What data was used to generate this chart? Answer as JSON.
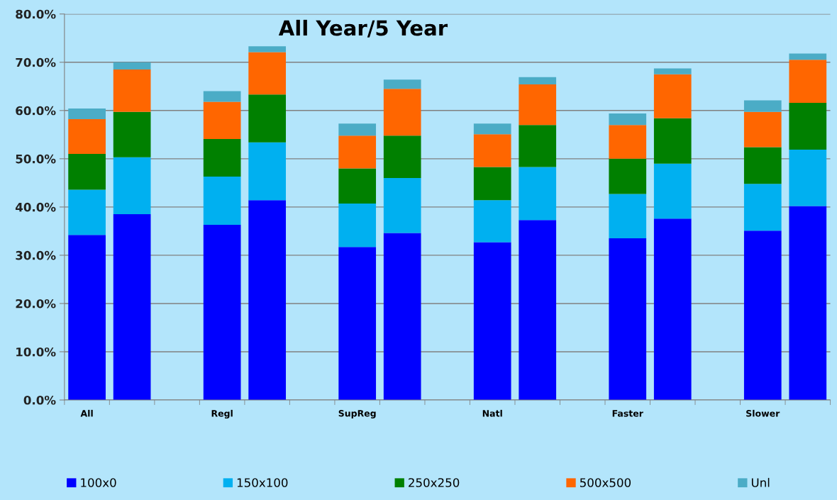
{
  "chart_data": {
    "type": "bar",
    "title": "All Year/5 Year",
    "stacked": true,
    "categories": [
      "All",
      null,
      null,
      "Regl",
      null,
      null,
      "SupReg",
      null,
      null,
      "Natl",
      null,
      null,
      "Faster",
      null,
      null,
      "Slower",
      null
    ],
    "series": [
      {
        "name": "100x0",
        "color": "#0000ff",
        "values": [
          34.2,
          38.5,
          null,
          36.3,
          41.4,
          null,
          31.7,
          34.6,
          null,
          32.7,
          37.3,
          null,
          33.5,
          37.6,
          null,
          35.1,
          40.2
        ]
      },
      {
        "name": "150x100",
        "color": "#00b0f0",
        "values": [
          9.4,
          11.8,
          null,
          10.0,
          12.0,
          null,
          9.0,
          11.4,
          null,
          8.7,
          11.0,
          null,
          9.2,
          11.4,
          null,
          9.7,
          11.7
        ]
      },
      {
        "name": "250x250",
        "color": "#008000",
        "values": [
          7.4,
          9.4,
          null,
          7.8,
          9.9,
          null,
          7.3,
          8.8,
          null,
          6.9,
          8.7,
          null,
          7.3,
          9.4,
          null,
          7.6,
          9.7
        ]
      },
      {
        "name": "500x500",
        "color": "#ff6600",
        "values": [
          7.2,
          8.8,
          null,
          7.7,
          8.8,
          null,
          6.8,
          9.7,
          null,
          6.8,
          8.4,
          null,
          7.0,
          9.1,
          null,
          7.3,
          8.9
        ]
      },
      {
        "name": "Unl",
        "color": "#4bacc6",
        "values": [
          2.2,
          1.5,
          null,
          2.2,
          1.2,
          null,
          2.5,
          1.9,
          null,
          2.2,
          1.5,
          null,
          2.4,
          1.2,
          null,
          2.4,
          1.3
        ]
      }
    ],
    "ylim": [
      0,
      80
    ],
    "yticks": [
      {
        "value": 0,
        "label": "0.0%"
      },
      {
        "value": 10,
        "label": "10.0%"
      },
      {
        "value": 20,
        "label": "20.0%"
      },
      {
        "value": 30,
        "label": "30.0%"
      },
      {
        "value": 40,
        "label": "40.0%"
      },
      {
        "value": 50,
        "label": "50.0%"
      },
      {
        "value": 60,
        "label": "60.0%"
      },
      {
        "value": 70,
        "label": "70.0%"
      },
      {
        "value": 80,
        "label": "80.0%"
      }
    ],
    "grid": "y",
    "legend": "bottom"
  }
}
